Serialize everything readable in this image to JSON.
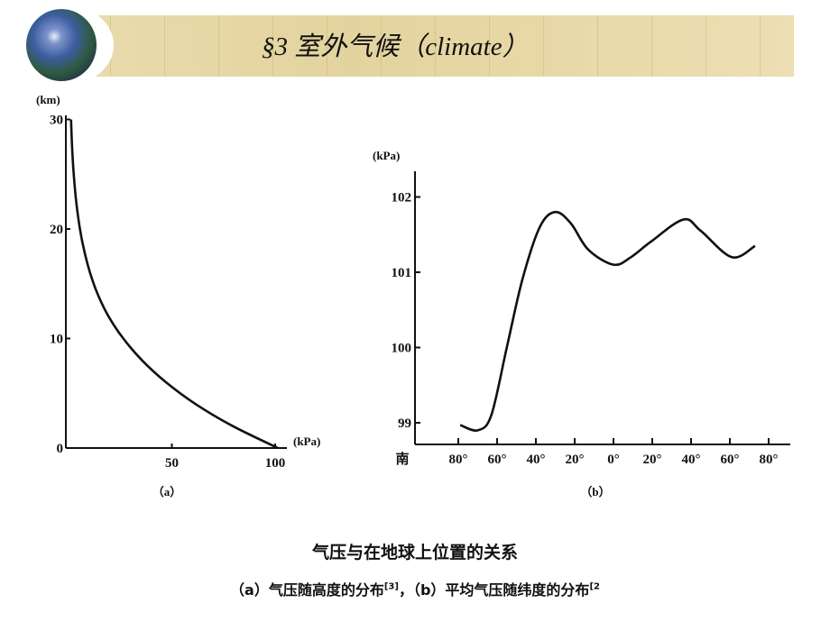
{
  "slide": {
    "title": "§3  室外气候（climate）",
    "caption_main": "气压与在地球上位置的关系",
    "caption_sub_a": "（a）气压随高度的分布",
    "caption_sub_a_ref": "[3]",
    "caption_sub_sep": "，",
    "caption_sub_b": "（b）平均气压随纬度的分布",
    "caption_sub_b_ref": "[2"
  },
  "chart_data": [
    {
      "type": "line",
      "panel_label": "（a）",
      "xlabel": "(kPa)",
      "ylabel": "(km)",
      "xlim": [
        0,
        100
      ],
      "ylim": [
        0,
        30
      ],
      "x_ticks": [
        "50",
        "100"
      ],
      "y_ticks": [
        "0",
        "10",
        "20",
        "30"
      ],
      "grid": false,
      "series": [
        {
          "x": [
            101.3,
            79.5,
            61.6,
            47.2,
            35.6,
            26.5,
            19.4,
            14.2,
            10.4,
            7.6,
            5.5,
            3.7,
            2.5,
            1.7,
            1.2
          ],
          "y": [
            0,
            2,
            4,
            6,
            8,
            10,
            12,
            14,
            16,
            18,
            20,
            22.5,
            25,
            27.5,
            30
          ]
        }
      ]
    },
    {
      "type": "line",
      "panel_label": "（b）",
      "ylabel": "(kPa)",
      "x_start_label": "南",
      "xlim": [
        -80,
        80
      ],
      "ylim": [
        98.7,
        102.3
      ],
      "x_ticks": [
        "80°",
        "60°",
        "40°",
        "20°",
        "0°",
        "20°",
        "40°",
        "60°",
        "80°"
      ],
      "x_tick_values": [
        -80,
        -60,
        -40,
        -20,
        0,
        20,
        40,
        60,
        80
      ],
      "y_ticks": [
        "99",
        "100",
        "101",
        "102"
      ],
      "grid": false,
      "series": [
        {
          "x": [
            -79,
            -70,
            -63,
            -55,
            -47,
            -38,
            -30,
            -22,
            -13,
            0,
            9,
            19,
            36,
            45,
            61,
            73
          ],
          "y": [
            98.97,
            98.9,
            99.1,
            100.0,
            100.9,
            101.6,
            101.8,
            101.65,
            101.3,
            101.1,
            101.2,
            101.4,
            101.7,
            101.55,
            101.2,
            101.35
          ]
        }
      ]
    }
  ]
}
